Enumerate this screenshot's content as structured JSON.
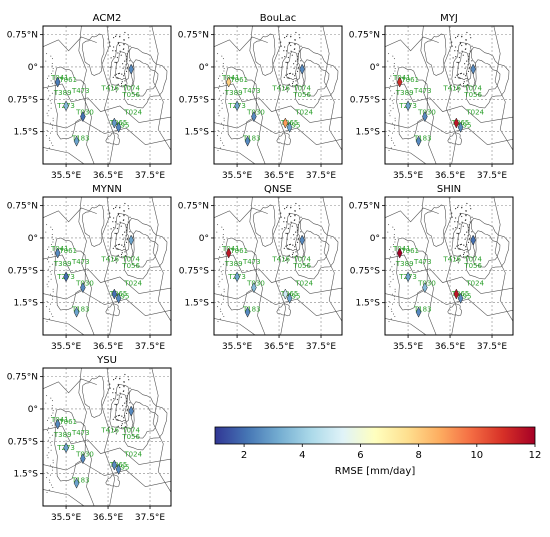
{
  "chart_data": {
    "type": "scatter",
    "panel_titles": [
      "ACM2",
      "BouLac",
      "MYJ",
      "MYNN",
      "QNSE",
      "SHIN",
      "YSU"
    ],
    "lon_ticks": [
      "35.5°E",
      "36.5°E",
      "37.5°E"
    ],
    "lon_tick_values": [
      35.5,
      36.5,
      37.5
    ],
    "lat_ticks": [
      "0.75°N",
      "0°",
      "0.75°S",
      "1.5°S"
    ],
    "lat_tick_values": [
      0.75,
      0,
      -0.75,
      -1.5
    ],
    "xlim": [
      34.95,
      38.0
    ],
    "ylim": [
      -2.25,
      0.95
    ],
    "stations": [
      {
        "id": "T041",
        "lon": 35.35,
        "lat": -0.3
      },
      {
        "id": "T061",
        "lon": 35.55,
        "lat": -0.35
      },
      {
        "id": "T389",
        "lon": 35.42,
        "lat": -0.65
      },
      {
        "id": "T473",
        "lon": 35.85,
        "lat": -0.6
      },
      {
        "id": "T273",
        "lon": 35.5,
        "lat": -0.95
      },
      {
        "id": "T416",
        "lon": 36.55,
        "lat": -0.55
      },
      {
        "id": "T074",
        "lon": 37.05,
        "lat": -0.55
      },
      {
        "id": "T056",
        "lon": 37.05,
        "lat": -0.7
      },
      {
        "id": "T030",
        "lon": 35.95,
        "lat": -1.1
      },
      {
        "id": "T024",
        "lon": 37.1,
        "lat": -1.1
      },
      {
        "id": "T065",
        "lon": 36.75,
        "lat": -1.35
      },
      {
        "id": "T095",
        "lon": 36.8,
        "lat": -1.4
      },
      {
        "id": "T183",
        "lon": 35.85,
        "lat": -1.7
      }
    ],
    "markers": [
      {
        "lon": 37.05,
        "lat": -0.05
      },
      {
        "lon": 35.3,
        "lat": -0.35
      },
      {
        "lon": 35.5,
        "lat": -0.9
      },
      {
        "lon": 35.9,
        "lat": -1.15
      },
      {
        "lon": 36.65,
        "lat": -1.3
      },
      {
        "lon": 36.75,
        "lat": -1.4
      },
      {
        "lon": 35.75,
        "lat": -1.72
      }
    ],
    "rmse": [
      [
        2.5,
        2.2,
        3.5,
        2.0,
        2.8,
        2.4,
        3.0
      ],
      [
        2.5,
        8.0,
        3.0,
        2.5,
        9.0,
        3.0,
        2.5
      ],
      [
        2.5,
        11.0,
        3.0,
        2.5,
        11.5,
        2.5,
        2.5
      ],
      [
        3.0,
        2.5,
        2.0,
        2.5,
        2.0,
        2.5,
        3.0
      ],
      [
        2.5,
        11.5,
        3.0,
        3.5,
        5.0,
        3.0,
        2.5
      ],
      [
        2.0,
        12.0,
        3.0,
        3.5,
        11.5,
        2.5,
        2.5
      ],
      [
        2.5,
        2.5,
        3.0,
        2.5,
        2.5,
        2.5,
        3.0
      ]
    ],
    "colorbar": {
      "label": "RMSE [mm/day]",
      "ticks": [
        2,
        4,
        6,
        8,
        10,
        12
      ],
      "range": [
        1,
        12
      ],
      "colormap": "RdYlBu_r"
    },
    "colors": {
      "station_label": "#2ca02c",
      "contour": "#555555",
      "grid": "#888888"
    }
  }
}
